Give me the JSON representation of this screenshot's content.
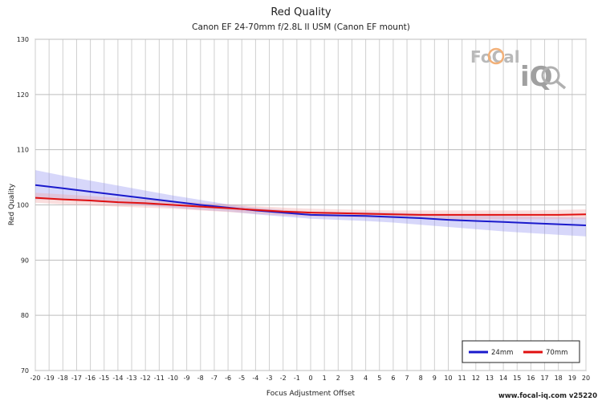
{
  "chart_data": {
    "type": "line",
    "title": "Red Quality",
    "subtitle": "Canon EF 24-70mm f/2.8L II USM (Canon EF mount)",
    "xlabel": "Focus Adjustment Offset",
    "ylabel": "Red Quality",
    "xlim": [
      -20,
      20
    ],
    "ylim": [
      70,
      130
    ],
    "x_ticks": [
      -20,
      -19,
      -18,
      -17,
      -16,
      -15,
      -14,
      -13,
      -12,
      -11,
      -10,
      -9,
      -8,
      -7,
      -6,
      -5,
      -4,
      -3,
      -2,
      -1,
      0,
      1,
      2,
      3,
      4,
      5,
      6,
      7,
      8,
      9,
      10,
      11,
      12,
      13,
      14,
      15,
      16,
      17,
      18,
      19,
      20
    ],
    "y_ticks": [
      70,
      80,
      90,
      100,
      110,
      120,
      130
    ],
    "grid": true,
    "legend": "bottom-right",
    "series": [
      {
        "name": "24mm",
        "color": "#1a1acc",
        "band_color": "#8c8cf0",
        "x": [
          -20,
          -18,
          -16,
          -14,
          -12,
          -10,
          -8,
          -6,
          -4,
          -2,
          0,
          2,
          4,
          6,
          8,
          10,
          12,
          14,
          16,
          18,
          20
        ],
        "values": [
          103.6,
          103.0,
          102.4,
          101.8,
          101.2,
          100.6,
          100.0,
          99.5,
          99.0,
          98.6,
          98.2,
          98.1,
          98.0,
          97.8,
          97.6,
          97.3,
          97.1,
          96.9,
          96.7,
          96.5,
          96.3
        ],
        "band_upper": [
          106.3,
          105.3,
          104.4,
          103.5,
          102.6,
          101.7,
          100.9,
          100.1,
          99.5,
          99.1,
          98.8,
          98.7,
          98.7,
          98.6,
          98.4,
          98.2,
          98.1,
          98.0,
          97.9,
          97.8,
          97.7
        ],
        "band_lower": [
          101.0,
          100.9,
          100.6,
          100.2,
          99.9,
          99.5,
          99.1,
          98.8,
          98.3,
          97.9,
          97.5,
          97.3,
          97.1,
          96.8,
          96.4,
          96.0,
          95.6,
          95.2,
          94.9,
          94.6,
          94.3
        ]
      },
      {
        "name": "70mm",
        "color": "#e01010",
        "band_color": "#f0a0a0",
        "x": [
          -20,
          -18,
          -16,
          -14,
          -12,
          -10,
          -8,
          -6,
          -4,
          -2,
          0,
          2,
          4,
          6,
          8,
          10,
          12,
          14,
          16,
          18,
          20
        ],
        "values": [
          101.3,
          101.0,
          100.8,
          100.5,
          100.3,
          100.0,
          99.7,
          99.4,
          99.1,
          98.8,
          98.6,
          98.5,
          98.4,
          98.3,
          98.2,
          98.2,
          98.2,
          98.2,
          98.2,
          98.2,
          98.3
        ],
        "band_upper": [
          102.2,
          101.9,
          101.6,
          101.3,
          101.0,
          100.7,
          100.4,
          100.1,
          99.8,
          99.5,
          99.3,
          99.2,
          99.1,
          99.0,
          99.0,
          99.0,
          99.0,
          99.0,
          99.0,
          99.1,
          99.2
        ],
        "band_lower": [
          100.4,
          100.1,
          99.9,
          99.7,
          99.5,
          99.3,
          99.0,
          98.7,
          98.4,
          98.1,
          97.9,
          97.8,
          97.7,
          97.6,
          97.5,
          97.4,
          97.4,
          97.4,
          97.4,
          97.4,
          97.4
        ]
      }
    ]
  },
  "logo": {
    "text_top": "FoCal",
    "text_bottom": "iQ"
  },
  "credit": "www.focal-iq.com  v25220"
}
